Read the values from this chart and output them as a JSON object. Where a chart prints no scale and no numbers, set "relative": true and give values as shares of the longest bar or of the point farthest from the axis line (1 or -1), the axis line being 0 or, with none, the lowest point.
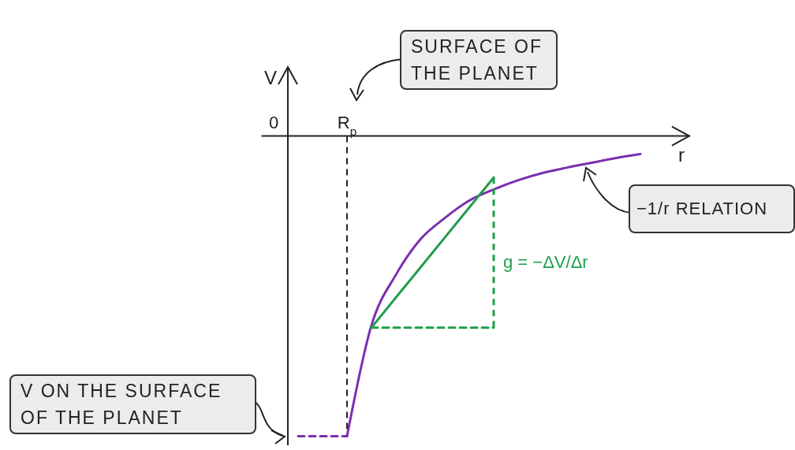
{
  "chart_data": {
    "type": "line",
    "relative": true,
    "xlabel": "r",
    "ylabel": "V",
    "categories": [
      "0",
      null,
      null,
      "R$_{p}$",
      null,
      null,
      null,
      null,
      null,
      null,
      null,
      null,
      null,
      null,
      null,
      null,
      null,
      null
    ],
    "series": [
      {
        "color": "#7b2fb0",
        "line_style": "solid",
        "values": [
          null,
          null,
          null,
          -1,
          -0.63,
          -0.462,
          -0.344,
          -0.273,
          -0.215,
          -0.178,
          -0.147,
          -0.123,
          -0.105,
          -0.089,
          -0.073,
          -0.06,
          null,
          null
        ]
      },
      {
        "color": "#7b2fb0",
        "line_style": "dashed",
        "values": [
          null,
          -1,
          -1,
          -1,
          null,
          null,
          null,
          null,
          null,
          null,
          null,
          null,
          null,
          null,
          null,
          null,
          null,
          null
        ]
      },
      {
        "color": "#1e9e4a",
        "line_style": "solid",
        "values": [
          null,
          null,
          null,
          null,
          -0.638,
          -0.538,
          -0.438,
          -0.338,
          -0.238,
          -0.138,
          null,
          null,
          null,
          null,
          null,
          null,
          null,
          null
        ]
      },
      {
        "color": "#1e9e4a",
        "line_style": "dashed",
        "values": [
          null,
          null,
          null,
          null,
          -0.638,
          -0.638,
          -0.638,
          -0.638,
          -0.638,
          -0.638,
          null,
          null,
          null,
          null,
          null,
          null,
          null,
          null
        ]
      }
    ],
    "ref_lines": [
      {
        "axis": "x",
        "value": "R$_{p}$",
        "color": "#222222",
        "line_style": "dashed"
      }
    ],
    "annotations": [
      "SURFACE OF THE PLANET",
      "−1/r RELATION",
      "V ON THE SURFACE OF THE PLANET",
      "g = −ΔV/Δr"
    ],
    "marker": "none"
  }
}
